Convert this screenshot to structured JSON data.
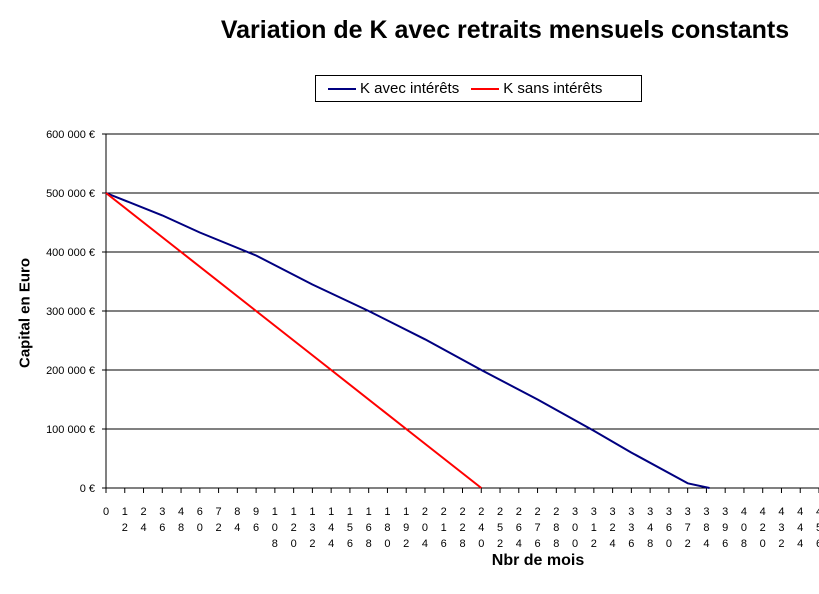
{
  "chart_data": {
    "type": "line",
    "title": "Variation de K avec retraits mensuels constants",
    "xlabel": "Nbr de mois",
    "ylabel": "Capital en Euro",
    "ylim": [
      0,
      600000
    ],
    "yticks": [
      "0 €",
      "100 000 €",
      "200 000 €",
      "300 000 €",
      "400 000 €",
      "500 000 €",
      "600 000 €"
    ],
    "xticks": [
      "0",
      "12",
      "24",
      "36",
      "48",
      "60",
      "72",
      "84",
      "96",
      "108",
      "120",
      "132",
      "144",
      "156",
      "168",
      "180",
      "192",
      "204",
      "216",
      "228",
      "240",
      "252",
      "264",
      "276",
      "288",
      "300",
      "312",
      "324",
      "336",
      "348",
      "360",
      "372",
      "384",
      "396",
      "408",
      "420",
      "432",
      "444",
      "456"
    ],
    "xlim": [
      0,
      456
    ],
    "grid": "horizontal",
    "legend_position": "top",
    "series": [
      {
        "name": "K avec intérêts",
        "color": "#000080",
        "x": [
          0,
          36,
          60,
          96,
          132,
          168,
          204,
          240,
          276,
          312,
          336,
          372,
          386
        ],
        "values": [
          500000,
          462000,
          433000,
          394000,
          345000,
          300000,
          252000,
          200000,
          150000,
          97000,
          60000,
          8000,
          0
        ]
      },
      {
        "name": "K sans intérêts",
        "color": "#ff0000",
        "x": [
          0,
          48,
          96,
          144,
          192,
          240
        ],
        "values": [
          500000,
          400000,
          300000,
          200000,
          100000,
          0
        ]
      }
    ]
  }
}
